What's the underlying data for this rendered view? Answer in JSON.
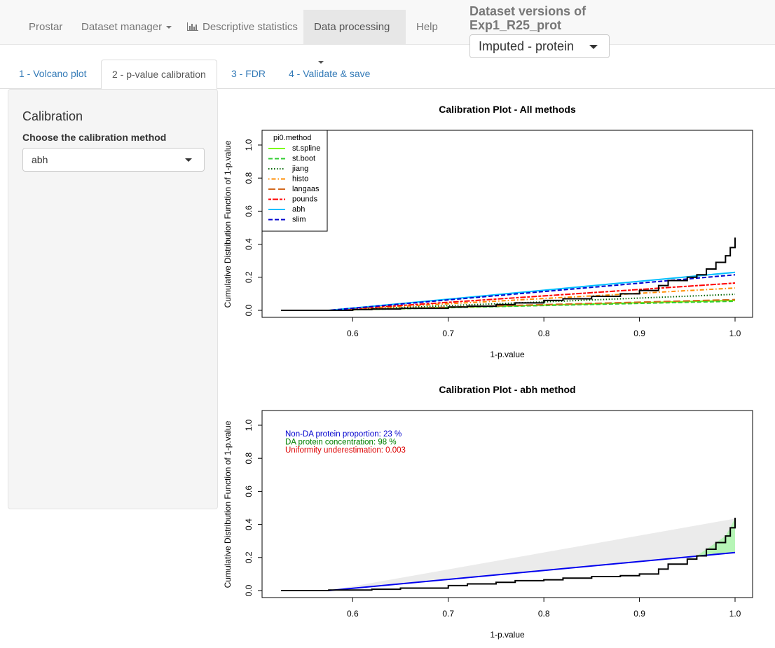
{
  "navbar": {
    "items": [
      {
        "label": "Prostar"
      },
      {
        "label": "Dataset manager"
      },
      {
        "label": "Descriptive statistics"
      },
      {
        "label": "Data processing"
      },
      {
        "label": "Help"
      }
    ],
    "dataset_versions_title": "Dataset versions of Exp1_R25_prot",
    "dataset_version_selected": "Imputed - protein"
  },
  "tabs": [
    {
      "label": "1 - Volcano plot"
    },
    {
      "label": "2 - p-value calibration"
    },
    {
      "label": "3 - FDR"
    },
    {
      "label": "4 - Validate & save"
    }
  ],
  "sidebar": {
    "title": "Calibration",
    "method_label": "Choose the calibration method",
    "method_selected": "abh"
  },
  "chart_data": [
    {
      "type": "line",
      "title": "Calibration Plot - All methods",
      "xlabel": "1-p.value",
      "ylabel": "Cumulative Distribution Function of 1-p.value",
      "xlim": [
        0.525,
        1.0
      ],
      "ylim": [
        0,
        1.0
      ],
      "x_ticks": [
        "0.6",
        "0.7",
        "0.8",
        "0.9",
        "1.0"
      ],
      "y_ticks": [
        "0.0",
        "0.2",
        "0.4",
        "0.6",
        "0.8",
        "1.0"
      ],
      "legend": {
        "title": "pi0.method",
        "position": "top-left",
        "entries": [
          {
            "name": "st.spline",
            "color": "#7CFC00",
            "dash": "solid"
          },
          {
            "name": "st.boot",
            "color": "#32CD32",
            "dash": "dashed"
          },
          {
            "name": "jiang",
            "color": "#006400",
            "dash": "dotted"
          },
          {
            "name": "histo",
            "color": "#FF8C00",
            "dash": "dotdash"
          },
          {
            "name": "langaas",
            "color": "#D2691E",
            "dash": "longdash"
          },
          {
            "name": "pounds",
            "color": "#FF0000",
            "dash": "twodash"
          },
          {
            "name": "abh",
            "color": "#00BFFF",
            "dash": "solid"
          },
          {
            "name": "slim",
            "color": "#0000CD",
            "dash": "dashed"
          }
        ]
      },
      "series": [
        {
          "name": "st.spline",
          "x": [
            0.525,
            0.575,
            1.0
          ],
          "y": [
            0,
            0,
            0.06
          ]
        },
        {
          "name": "st.boot",
          "x": [
            0.525,
            0.575,
            1.0
          ],
          "y": [
            0,
            0,
            0.055
          ]
        },
        {
          "name": "jiang",
          "x": [
            0.525,
            0.575,
            1.0
          ],
          "y": [
            0,
            0,
            0.097
          ]
        },
        {
          "name": "histo",
          "x": [
            0.525,
            0.575,
            1.0
          ],
          "y": [
            0,
            0,
            0.135
          ]
        },
        {
          "name": "langaas",
          "x": [
            0.525,
            0.575,
            1.0
          ],
          "y": [
            0,
            0,
            0.065
          ]
        },
        {
          "name": "pounds",
          "x": [
            0.525,
            0.575,
            1.0
          ],
          "y": [
            0,
            0,
            0.165
          ]
        },
        {
          "name": "abh",
          "x": [
            0.525,
            0.575,
            1.0
          ],
          "y": [
            0,
            0,
            0.23
          ]
        },
        {
          "name": "slim",
          "x": [
            0.525,
            0.575,
            1.0
          ],
          "y": [
            0,
            0,
            0.215
          ]
        }
      ],
      "ecdf": {
        "x": [
          0.525,
          0.575,
          0.6,
          0.62,
          0.65,
          0.7,
          0.72,
          0.75,
          0.77,
          0.8,
          0.82,
          0.85,
          0.88,
          0.9,
          0.92,
          0.93,
          0.95,
          0.96,
          0.97,
          0.98,
          0.99,
          0.995,
          1.0
        ],
        "y": [
          0,
          0,
          0.005,
          0.008,
          0.012,
          0.02,
          0.025,
          0.035,
          0.045,
          0.06,
          0.07,
          0.085,
          0.1,
          0.12,
          0.15,
          0.18,
          0.2,
          0.215,
          0.25,
          0.29,
          0.33,
          0.38,
          0.44
        ]
      }
    },
    {
      "type": "line",
      "title": "Calibration Plot - abh method",
      "xlabel": "1-p.value",
      "ylabel": "Cumulative Distribution Function of 1-p.value",
      "xlim": [
        0.525,
        1.0
      ],
      "ylim": [
        0,
        1.0
      ],
      "x_ticks": [
        "0.6",
        "0.7",
        "0.8",
        "0.9",
        "1.0"
      ],
      "y_ticks": [
        "0.0",
        "0.2",
        "0.4",
        "0.6",
        "0.8",
        "1.0"
      ],
      "annotations": [
        {
          "text": "Non-DA protein proportion:  23 %",
          "color": "#0000CD"
        },
        {
          "text": "DA protein concentration:  98 %",
          "color": "#008000"
        },
        {
          "text": "Uniformity underestimation:  0.003",
          "color": "#DD0000"
        }
      ],
      "abh_line": {
        "x": [
          0.525,
          0.575,
          1.0
        ],
        "y": [
          0,
          0,
          0.23
        ]
      },
      "gray_region": {
        "x": [
          0.575,
          1.0
        ],
        "y_top": [
          0,
          0.435
        ]
      },
      "ecdf": {
        "x": [
          0.525,
          0.575,
          0.62,
          0.65,
          0.7,
          0.72,
          0.75,
          0.77,
          0.8,
          0.82,
          0.85,
          0.88,
          0.9,
          0.92,
          0.93,
          0.95,
          0.96,
          0.97,
          0.98,
          0.99,
          0.995,
          1.0
        ],
        "y": [
          0,
          0.003,
          0.008,
          0.015,
          0.03,
          0.04,
          0.05,
          0.06,
          0.065,
          0.075,
          0.085,
          0.09,
          0.1,
          0.13,
          0.16,
          0.19,
          0.21,
          0.25,
          0.29,
          0.33,
          0.38,
          0.44
        ]
      }
    }
  ]
}
